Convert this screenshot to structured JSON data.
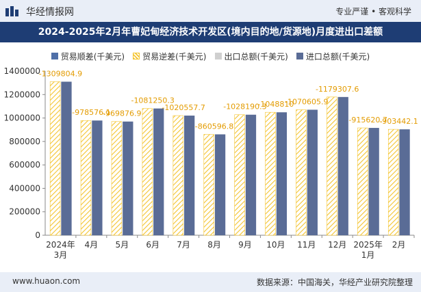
{
  "header": {
    "site_name": "华经情报网",
    "tagline": "专业严谨 • 客观科学"
  },
  "footer": {
    "url": "www.huaon.com",
    "source": "数据来源：中国海关，华经产业研究院整理"
  },
  "colors": {
    "import_bar": "#5a6c96",
    "deficit_hatch": "#f4c430",
    "label_text": "#e39b00",
    "title_bg": "#1e3d74"
  },
  "chart_data": {
    "type": "bar",
    "title": "2024-2025年2月年曹妃甸经济技术开发区(境内目的地/货源地)月度进出口差额",
    "categories": [
      "2024年\n3月",
      "4月",
      "5月",
      "6月",
      "7月",
      "8月",
      "9月",
      "10月",
      "11月",
      "12月",
      "2025年\n1月",
      "2月"
    ],
    "ylim": [
      0,
      1400000
    ],
    "yticks": [
      0,
      200000,
      400000,
      600000,
      800000,
      1000000,
      1200000,
      1400000
    ],
    "legend_position": "top",
    "grid": false,
    "series": [
      {
        "name": "贸易顺差(千美元)",
        "values": [
          0,
          0,
          0,
          0,
          0,
          0,
          0,
          0,
          0,
          0,
          0,
          0
        ]
      },
      {
        "name": "贸易逆差(千美元)",
        "values": [
          1309804.9,
          978576.1,
          969876.9,
          1081250.3,
          1020557.7,
          860596.8,
          1028190.3,
          1048810,
          1070605.9,
          1179307.6,
          915620.7,
          903442.1
        ]
      },
      {
        "name": "出口总额(千美元)",
        "values": [
          0,
          0,
          0,
          0,
          0,
          0,
          0,
          0,
          0,
          0,
          0,
          0
        ]
      },
      {
        "name": "进口总额(千美元)",
        "values": [
          1309804.9,
          978576.1,
          969876.9,
          1081250.3,
          1020557.7,
          860596.8,
          1028190.3,
          1048810,
          1070605.9,
          1179307.6,
          915620.7,
          903442.1
        ]
      }
    ],
    "data_labels": [
      "-1309804.9",
      "-978576.1",
      "-969876.9",
      "-1081250.3",
      "-1020557.7",
      "-860596.8",
      "-1028190.3",
      "-1048810",
      "-1070605.9",
      "-1179307.6",
      "-915620.7",
      "-903442.1"
    ]
  }
}
